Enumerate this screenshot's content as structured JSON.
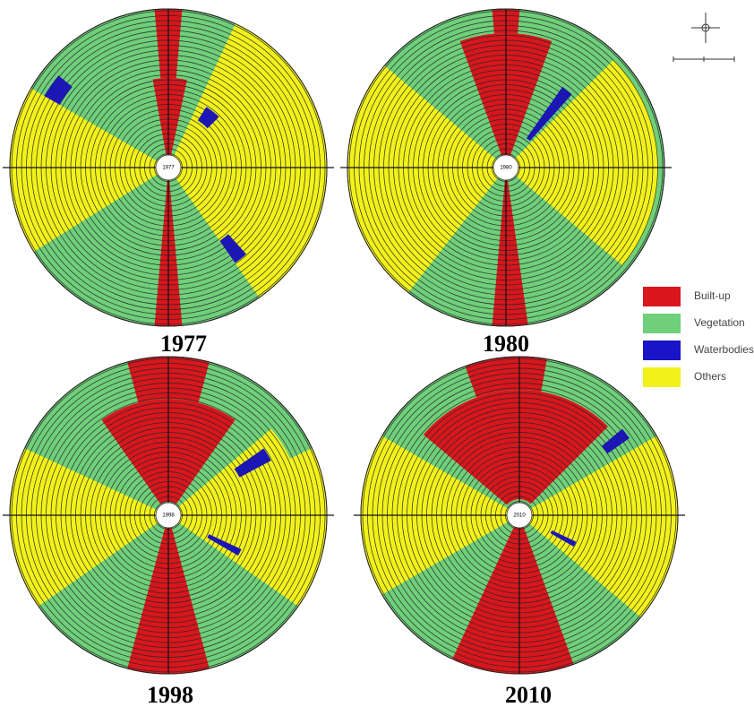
{
  "maps": [
    {
      "year": "1977",
      "center_label": "1977"
    },
    {
      "year": "1980",
      "center_label": "1980"
    },
    {
      "year": "1998",
      "center_label": "1998"
    },
    {
      "year": "2010",
      "center_label": "2010"
    }
  ],
  "legend": [
    {
      "label": "Built-up",
      "color": "#d8161c"
    },
    {
      "label": "Vegetation",
      "color": "#6fcf7a"
    },
    {
      "label": "Waterbodies",
      "color": "#1a14c8"
    },
    {
      "label": "Others",
      "color": "#f2f21a"
    }
  ]
}
